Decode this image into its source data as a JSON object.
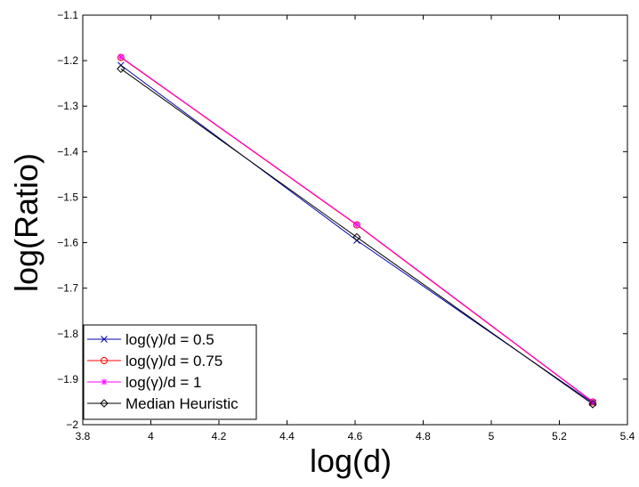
{
  "chart_data": {
    "type": "line",
    "title": "",
    "xlabel": "log(d)",
    "ylabel": "log(Ratio)",
    "xlim": [
      3.8,
      5.4
    ],
    "ylim": [
      -2.0,
      -1.1
    ],
    "xticks": [
      "3.8",
      "4",
      "4.2",
      "4.4",
      "4.6",
      "4.8",
      "5",
      "5.2",
      "5.4"
    ],
    "yticks": [
      "−1.1",
      "−1.2",
      "−1.3",
      "−1.4",
      "−1.5",
      "−1.6",
      "−1.7",
      "−1.8",
      "−1.9",
      "−2"
    ],
    "grid": false,
    "legend_position": "bottom-left",
    "series": [
      {
        "name": "log(γ)/d = 0.5",
        "color": "#0000aa",
        "marker": "x",
        "x": [
          3.912,
          4.605,
          5.298
        ],
        "y": [
          -1.21,
          -1.595,
          -1.952
        ]
      },
      {
        "name": "log(γ)/d = 0.75",
        "color": "#ff0000",
        "marker": "circle",
        "x": [
          3.912,
          4.605,
          5.298
        ],
        "y": [
          -1.193,
          -1.561,
          -1.95
        ]
      },
      {
        "name": "log(γ)/d = 1",
        "color": "#ff00ff",
        "marker": "star",
        "x": [
          3.912,
          4.605,
          5.298
        ],
        "y": [
          -1.192,
          -1.56,
          -1.949
        ]
      },
      {
        "name": "Median Heuristic",
        "color": "#000000",
        "marker": "diamond",
        "x": [
          3.912,
          4.605,
          5.298
        ],
        "y": [
          -1.218,
          -1.588,
          -1.955
        ]
      }
    ]
  }
}
